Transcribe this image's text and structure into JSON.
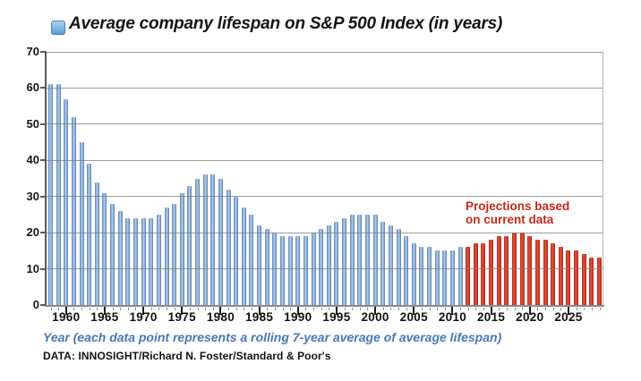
{
  "header": {
    "title": "Average company lifespan on S&P 500 Index (in years)"
  },
  "annotation": {
    "line1": "Projections based",
    "line2": "on current data",
    "color": "#c3271b"
  },
  "caption": {
    "text": "Year (each data point represents a rolling 7-year average of average lifespan)"
  },
  "source": {
    "text": "DATA: INNOSIGHT/Richard N. Foster/Standard & Poor's"
  },
  "colors": {
    "historical_bar": "#7da3cf",
    "projection_bar": "#cf4130",
    "caption_blue": "#4878b4",
    "annotation_red": "#c3271b",
    "gridline": "#787878",
    "legend_swatch": "#5b9bd5"
  },
  "chart_data": {
    "type": "bar",
    "title": "Average company lifespan on S&P 500 Index (in years)",
    "xlabel": "Year (each data point represents a rolling 7-year average of average lifespan)",
    "ylabel": "",
    "ylim": [
      0,
      70
    ],
    "yticks": [
      0,
      10,
      20,
      30,
      40,
      50,
      60,
      70
    ],
    "x_range": [
      1958,
      2029
    ],
    "x_labeled_ticks": [
      1960,
      1965,
      1970,
      1975,
      1980,
      1985,
      1990,
      1995,
      2000,
      2005,
      2010,
      2015,
      2020,
      2025
    ],
    "grid": "horizontal gridlines every 10 years, drawn over bars",
    "annotation": "Projections based on current data (red bars from 2012 onward)",
    "series": [
      {
        "name": "Average company lifespan (historical)",
        "color": "#7da3cf",
        "start_year": 1958,
        "values": [
          61,
          61,
          57,
          52,
          45,
          39,
          34,
          31,
          28,
          26,
          24,
          24,
          24,
          24,
          25,
          27,
          28,
          31,
          33,
          35,
          36,
          36,
          35,
          32,
          30,
          27,
          25,
          22,
          21,
          20,
          19,
          19,
          19,
          19,
          20,
          21,
          22,
          23,
          24,
          25,
          25,
          25,
          25,
          23,
          22,
          21,
          19,
          17,
          16,
          16,
          15,
          15,
          15,
          16
        ]
      },
      {
        "name": "Projections based on current data",
        "color": "#cf4130",
        "start_year": 2012,
        "values": [
          16,
          17,
          17,
          18,
          19,
          19,
          20,
          20,
          19,
          18,
          18,
          17,
          16,
          15,
          15,
          14,
          13,
          13
        ]
      }
    ]
  }
}
